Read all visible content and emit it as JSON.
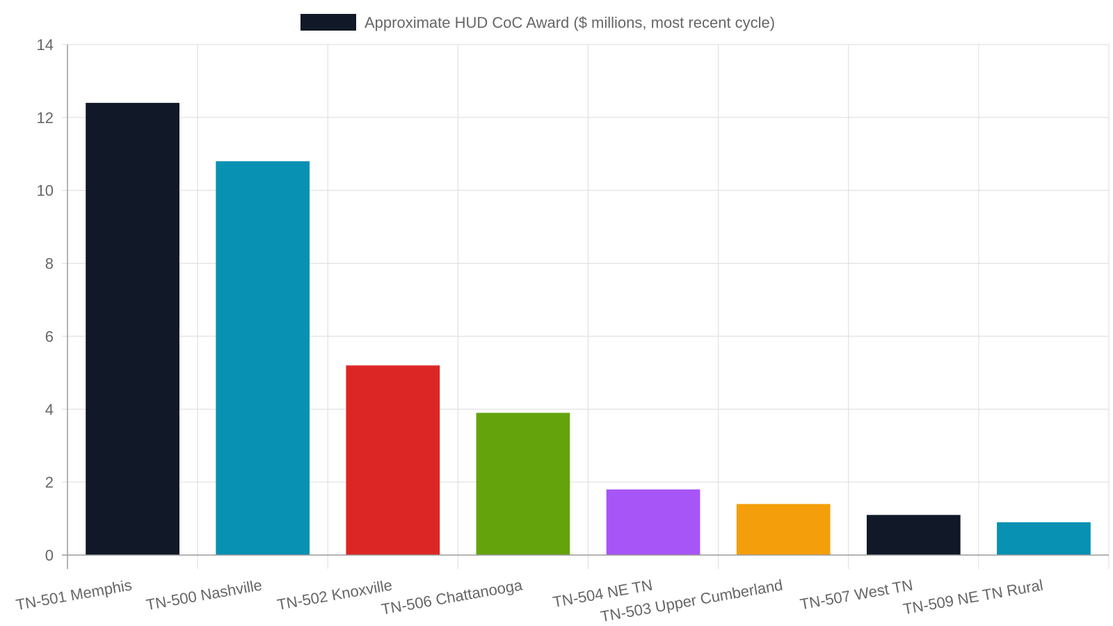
{
  "chart_data": {
    "type": "bar",
    "categories": [
      "TN-501 Memphis",
      "TN-500 Nashville",
      "TN-502 Knoxville",
      "TN-506 Chattanooga",
      "TN-504 NE TN",
      "TN-503 Upper Cumberland",
      "TN-507 West TN",
      "TN-509 NE TN Rural"
    ],
    "series": [
      {
        "name": "Approximate HUD CoC Award ($ millions, most recent cycle)",
        "values": [
          12.4,
          10.8,
          5.2,
          3.9,
          1.8,
          1.4,
          1.1,
          0.9
        ]
      }
    ],
    "bar_colors": [
      "#111827",
      "#0891b2",
      "#dc2626",
      "#65a30d",
      "#a855f7",
      "#f59e0b",
      "#111827",
      "#0891b2"
    ],
    "legend_color": "#111827",
    "yticks": [
      0,
      2,
      4,
      6,
      8,
      10,
      12,
      14
    ],
    "ylim": [
      0,
      14
    ],
    "grid": true,
    "legend_position": "top-center"
  }
}
